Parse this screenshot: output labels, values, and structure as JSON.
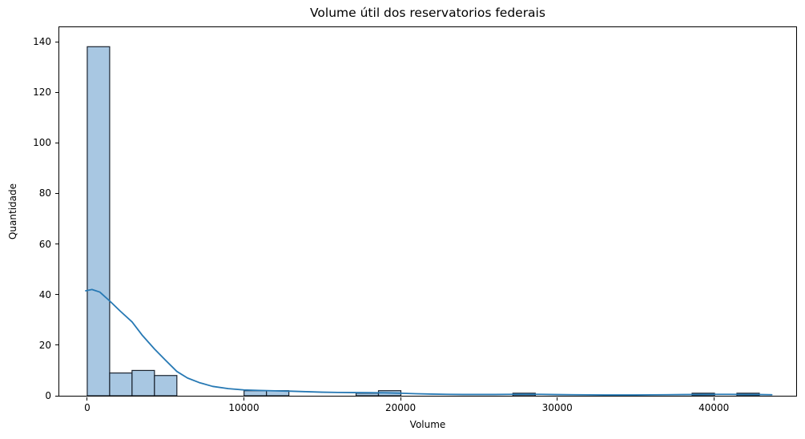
{
  "figure": {
    "title": "Volume útil dos reservatorios federais",
    "xlabel": "Volume",
    "ylabel": "Quantidade"
  },
  "chart_data": {
    "type": "bar",
    "subtype": "histogram_with_kde",
    "title": "Volume útil dos reservatorios federais",
    "xlabel": "Volume",
    "ylabel": "Quantidade",
    "xlim": [
      -1786,
      45255
    ],
    "ylim": [
      0,
      145.7
    ],
    "x_ticks": [
      0,
      10000,
      20000,
      30000,
      40000
    ],
    "y_ticks": [
      0,
      20,
      40,
      60,
      80,
      100,
      120,
      140
    ],
    "grid": false,
    "legend_position": "none",
    "bin_width": 1430,
    "bins": [
      {
        "start": 0,
        "end": 1430,
        "count": 138
      },
      {
        "start": 1430,
        "end": 2860,
        "count": 9
      },
      {
        "start": 2860,
        "end": 4290,
        "count": 10
      },
      {
        "start": 4290,
        "end": 5720,
        "count": 8
      },
      {
        "start": 10010,
        "end": 11440,
        "count": 2
      },
      {
        "start": 11440,
        "end": 12870,
        "count": 2
      },
      {
        "start": 17160,
        "end": 18590,
        "count": 1
      },
      {
        "start": 18590,
        "end": 20020,
        "count": 2
      },
      {
        "start": 27170,
        "end": 28600,
        "count": 1
      },
      {
        "start": 38610,
        "end": 40040,
        "count": 1
      },
      {
        "start": 41470,
        "end": 42900,
        "count": 1
      }
    ],
    "kde_series": {
      "name": "KDE",
      "x": [
        -100,
        300,
        800,
        1430,
        2100,
        2860,
        3500,
        4290,
        5000,
        5720,
        6400,
        7150,
        8000,
        9000,
        10000,
        11000,
        12000,
        13000,
        14000,
        15000,
        16000,
        17000,
        18000,
        19000,
        20000,
        21000,
        22000,
        23000,
        24000,
        25000,
        26000,
        27000,
        28000,
        29000,
        30000,
        31000,
        32000,
        33000,
        34000,
        35000,
        36000,
        37000,
        38000,
        39000,
        40000,
        41000,
        42000,
        43000,
        43700
      ],
      "y": [
        41.5,
        42.0,
        41.0,
        37.5,
        33.5,
        29.2,
        24.0,
        18.5,
        14.0,
        9.6,
        7.0,
        5.2,
        3.7,
        2.8,
        2.3,
        2.1,
        1.95,
        1.8,
        1.6,
        1.4,
        1.3,
        1.25,
        1.2,
        1.15,
        1.0,
        0.8,
        0.65,
        0.55,
        0.5,
        0.5,
        0.5,
        0.55,
        0.6,
        0.55,
        0.45,
        0.4,
        0.35,
        0.3,
        0.3,
        0.3,
        0.35,
        0.4,
        0.45,
        0.5,
        0.55,
        0.55,
        0.5,
        0.45,
        0.4
      ]
    },
    "colors": {
      "bar_fill": "#a8c7e2",
      "bar_edge": "#1b2430",
      "kde_line": "#2779b4",
      "axis": "#000000",
      "background": "#ffffff"
    }
  }
}
